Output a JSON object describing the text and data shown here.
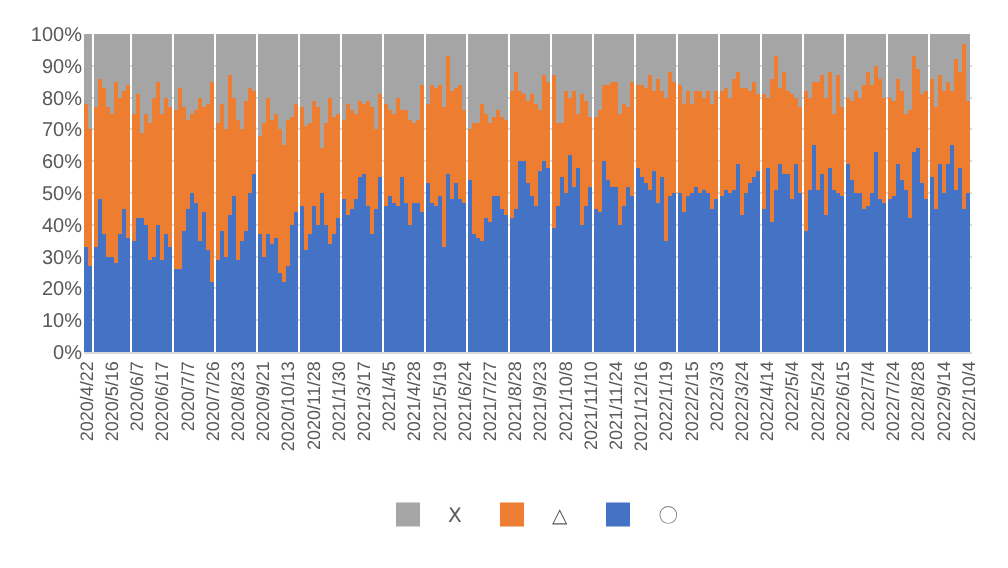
{
  "chart_data": {
    "type": "bar",
    "stacked": true,
    "grid": "y",
    "legend": "bottom",
    "ylim": [
      0,
      100
    ],
    "yticks": [
      {
        "value": 0,
        "label": "0%"
      },
      {
        "value": 10,
        "label": "10%"
      },
      {
        "value": 20,
        "label": "20%"
      },
      {
        "value": 30,
        "label": "30%"
      },
      {
        "value": 40,
        "label": "40%"
      },
      {
        "value": 50,
        "label": "50%"
      },
      {
        "value": 60,
        "label": "60%"
      },
      {
        "value": 70,
        "label": "70%"
      },
      {
        "value": 80,
        "label": "80%"
      },
      {
        "value": 90,
        "label": "90%"
      },
      {
        "value": 100,
        "label": "100%"
      }
    ],
    "categories": [
      "2020/4/22",
      null,
      null,
      null,
      null,
      null,
      "2020/5/16",
      null,
      null,
      null,
      null,
      null,
      "2020/6/7",
      null,
      null,
      null,
      null,
      null,
      "2020/6/17",
      null,
      null,
      null,
      null,
      null,
      "2020/7/7",
      null,
      null,
      null,
      null,
      null,
      "2020/7/26",
      null,
      null,
      null,
      null,
      null,
      "2020/8/23",
      null,
      null,
      null,
      null,
      null,
      "2020/9/21",
      null,
      null,
      null,
      null,
      null,
      "2020/10/13",
      null,
      null,
      null,
      null,
      null,
      "2020/11/28",
      null,
      null,
      null,
      null,
      null,
      "2021/1/30",
      null,
      null,
      null,
      null,
      null,
      "2021/3/17",
      null,
      null,
      null,
      null,
      null,
      "2021/4/5",
      null,
      null,
      null,
      null,
      null,
      "2021/4/28",
      null,
      null,
      null,
      null,
      null,
      "2021/5/19",
      null,
      null,
      null,
      null,
      null,
      "2021/6/24",
      null,
      null,
      null,
      null,
      null,
      "2021/7/27",
      null,
      null,
      null,
      null,
      null,
      "2021/8/28",
      null,
      null,
      null,
      null,
      null,
      "2021/9/23",
      null,
      null,
      null,
      null,
      null,
      "2021/10/8",
      null,
      null,
      null,
      null,
      null,
      "2021/11/10",
      null,
      null,
      null,
      null,
      null,
      "2021/11/24",
      null,
      null,
      null,
      null,
      null,
      "2021/12/16",
      null,
      null,
      null,
      null,
      null,
      "2022/1/19",
      null,
      null,
      null,
      null,
      null,
      "2022/2/15",
      null,
      null,
      null,
      null,
      null,
      "2022/3/3",
      null,
      null,
      null,
      null,
      null,
      "2022/3/24",
      null,
      null,
      null,
      null,
      null,
      "2022/4/14",
      null,
      null,
      null,
      null,
      null,
      "2022/5/4",
      null,
      null,
      null,
      null,
      null,
      "2022/5/24",
      null,
      null,
      null,
      null,
      null,
      "2022/6/15",
      null,
      null,
      null,
      null,
      null,
      "2022/7/4",
      null,
      null,
      null,
      null,
      null,
      "2022/7/24",
      null,
      null,
      null,
      null,
      null,
      "2022/8/28",
      null,
      null,
      null,
      null,
      null,
      "2022/9/14",
      null,
      null,
      null,
      null,
      null,
      "2022/10/4"
    ],
    "series": [
      {
        "name": "〇",
        "color": "#4472c4",
        "values": [
          33,
          27,
          33,
          48,
          37,
          30,
          30,
          28,
          37,
          45,
          36,
          35,
          42,
          42,
          40,
          29,
          30,
          40,
          29,
          37,
          33,
          26,
          26,
          38,
          45,
          50,
          47,
          35,
          44,
          32,
          22,
          29,
          38,
          30,
          43,
          49,
          29,
          35,
          38,
          50,
          56,
          37,
          30,
          37,
          34,
          36,
          25,
          22,
          27,
          40,
          44,
          46,
          32,
          37,
          46,
          40,
          50,
          40,
          34,
          37,
          42,
          48,
          43,
          45,
          48,
          55,
          56,
          46,
          37,
          45,
          55,
          46,
          49,
          47,
          46,
          55,
          47,
          40,
          47,
          47,
          44,
          53,
          47,
          46,
          49,
          33,
          56,
          48,
          53,
          48,
          47,
          54,
          37,
          36,
          35,
          42,
          41,
          49,
          49,
          45,
          43,
          42,
          45,
          60,
          60,
          53,
          49,
          46,
          57,
          60,
          58,
          39,
          46,
          55,
          50,
          62,
          52,
          58,
          40,
          46,
          52,
          45,
          44,
          60,
          54,
          52,
          52,
          40,
          46,
          52,
          49,
          58,
          55,
          53,
          51,
          57,
          47,
          55,
          35,
          49,
          50,
          50,
          44,
          49,
          50,
          52,
          50,
          51,
          50,
          45,
          48,
          49,
          51,
          50,
          51,
          59,
          43,
          50,
          53,
          55,
          57,
          45,
          58,
          41,
          51,
          59,
          56,
          56,
          48,
          59,
          50,
          38,
          51,
          65,
          51,
          56,
          43,
          58,
          51,
          50,
          49,
          59,
          54,
          50,
          50,
          45,
          46,
          50,
          63,
          48,
          47,
          48,
          49,
          59,
          54,
          51,
          42,
          63,
          64,
          53,
          48,
          55,
          45,
          59,
          50,
          59,
          65,
          51,
          58,
          45,
          50
        ]
      },
      {
        "name": "△",
        "color": "#ed7d31",
        "values": [
          45,
          43,
          44,
          38,
          46,
          47,
          45,
          57,
          43,
          37,
          48,
          40,
          39,
          27,
          35,
          43,
          50,
          45,
          46,
          43,
          44,
          50,
          57,
          39,
          28,
          25,
          29,
          45,
          33,
          46,
          63,
          43,
          40,
          40,
          44,
          31,
          44,
          35,
          41,
          33,
          26,
          31,
          42,
          43,
          39,
          39,
          45,
          43,
          46,
          34,
          34,
          31,
          39,
          35,
          33,
          37,
          14,
          32,
          46,
          37,
          33,
          25,
          35,
          31,
          27,
          24,
          22,
          33,
          40,
          25,
          26,
          32,
          27,
          28,
          34,
          21,
          29,
          33,
          25,
          26,
          40,
          25,
          37,
          37,
          35,
          44,
          37,
          34,
          30,
          36,
          29,
          16,
          35,
          36,
          43,
          33,
          31,
          25,
          27,
          29,
          30,
          40,
          43,
          22,
          21,
          26,
          32,
          32,
          19,
          27,
          27,
          48,
          26,
          17,
          32,
          18,
          30,
          17,
          41,
          33,
          22,
          29,
          32,
          24,
          30,
          33,
          33,
          35,
          32,
          25,
          36,
          26,
          29,
          30,
          36,
          25,
          39,
          27,
          45,
          39,
          35,
          34,
          34,
          33,
          28,
          30,
          32,
          29,
          32,
          33,
          34,
          33,
          32,
          30,
          35,
          29,
          40,
          33,
          29,
          30,
          24,
          36,
          22,
          45,
          42,
          24,
          32,
          26,
          33,
          21,
          27,
          44,
          29,
          20,
          34,
          31,
          37,
          30,
          24,
          37,
          28,
          21,
          25,
          32,
          30,
          39,
          42,
          34,
          27,
          38,
          33,
          32,
          30,
          27,
          28,
          24,
          34,
          30,
          25,
          28,
          34,
          31,
          32,
          28,
          32,
          26,
          17,
          41,
          30,
          52,
          29
        ]
      },
      {
        "name": "X",
        "color": "#a5a5a5",
        "values": [
          22,
          30,
          23,
          14,
          17,
          23,
          25,
          15,
          20,
          18,
          16,
          25,
          19,
          31,
          25,
          28,
          20,
          15,
          25,
          20,
          23,
          24,
          17,
          23,
          27,
          25,
          24,
          20,
          23,
          22,
          15,
          28,
          22,
          30,
          13,
          20,
          27,
          30,
          21,
          17,
          18,
          32,
          28,
          20,
          27,
          25,
          30,
          35,
          27,
          26,
          22,
          23,
          29,
          28,
          21,
          23,
          36,
          28,
          20,
          26,
          25,
          27,
          22,
          24,
          25,
          21,
          22,
          21,
          23,
          30,
          19,
          22,
          24,
          25,
          20,
          24,
          24,
          27,
          28,
          27,
          16,
          22,
          16,
          17,
          16,
          23,
          7,
          18,
          17,
          16,
          24,
          30,
          28,
          28,
          22,
          25,
          28,
          26,
          24,
          26,
          27,
          18,
          12,
          18,
          19,
          21,
          19,
          22,
          24,
          13,
          15,
          13,
          28,
          28,
          18,
          20,
          18,
          25,
          19,
          21,
          26,
          26,
          24,
          16,
          16,
          15,
          15,
          25,
          22,
          23,
          15,
          16,
          16,
          17,
          13,
          18,
          14,
          18,
          20,
          12,
          15,
          16,
          22,
          18,
          22,
          18,
          18,
          20,
          18,
          22,
          18,
          18,
          17,
          20,
          14,
          12,
          17,
          17,
          18,
          15,
          19,
          19,
          20,
          14,
          7,
          17,
          12,
          18,
          19,
          20,
          23,
          18,
          20,
          15,
          15,
          13,
          20,
          12,
          25,
          13,
          23,
          20,
          21,
          18,
          20,
          16,
          12,
          16,
          10,
          14,
          20,
          20,
          21,
          14,
          18,
          25,
          24,
          7,
          11,
          19,
          18,
          14,
          23,
          13,
          18,
          15,
          18,
          8,
          12,
          3,
          21
        ]
      }
    ]
  }
}
